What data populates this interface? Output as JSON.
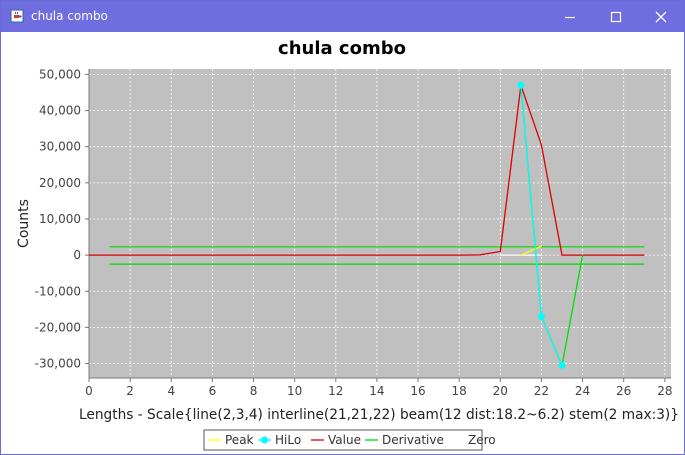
{
  "window": {
    "title": "chula combo",
    "icon": "java-cup-icon",
    "controls": [
      "minimize-icon",
      "maximize-icon",
      "close-icon"
    ]
  },
  "chart_data": {
    "type": "line",
    "title": "chula combo",
    "xlabel": "Lengths - Scale{line(2,3,4) interline(21,21,22) beam(12 dist:18.2~6.2) stem(2 max:3)}",
    "ylabel": "Counts",
    "xlim": [
      0,
      28.3
    ],
    "ylim": [
      -34000,
      51500
    ],
    "x_ticks": [
      0,
      2,
      4,
      6,
      8,
      10,
      12,
      14,
      16,
      18,
      20,
      22,
      24,
      26,
      28
    ],
    "y_ticks": [
      -30000,
      -20000,
      -10000,
      0,
      10000,
      20000,
      30000,
      40000,
      50000
    ],
    "y_tick_labels": [
      "-30,000",
      "-20,000",
      "-10,000",
      "0",
      "10,000",
      "20,000",
      "30,000",
      "40,000",
      "50,000"
    ],
    "background": "#c0c0c0",
    "grid": true,
    "legend_position": "bottom",
    "series": [
      {
        "name": "Peak",
        "color": "#ffff00",
        "markers": false,
        "x": [
          21,
          22
        ],
        "y": [
          0,
          2500
        ]
      },
      {
        "name": "HiLo",
        "color": "#00ffff",
        "markers": true,
        "x": [
          21,
          22,
          23
        ],
        "y": [
          47000,
          -17000,
          -30500
        ]
      },
      {
        "name": "Value",
        "color": "#dd0000",
        "markers": false,
        "x": [
          0,
          1,
          2,
          3,
          4,
          5,
          6,
          7,
          8,
          9,
          10,
          11,
          12,
          13,
          14,
          15,
          16,
          17,
          18,
          19,
          20,
          21,
          22,
          23,
          24,
          25,
          26,
          27
        ],
        "y": [
          0,
          0,
          0,
          0,
          0,
          0,
          0,
          0,
          0,
          0,
          0,
          0,
          0,
          0,
          0,
          0,
          0,
          0,
          0,
          50,
          1000,
          47000,
          30500,
          0,
          0,
          0,
          0,
          0
        ]
      },
      {
        "name": "Derivative",
        "color": "#00dd00",
        "markers": false,
        "x": [
          21,
          22,
          23,
          24
        ],
        "y": [
          47000,
          -17000,
          -30500,
          0
        ]
      },
      {
        "name": "Zero",
        "color": "#ffffff",
        "markers": false,
        "x": [
          20,
          22
        ],
        "y": [
          0,
          0
        ]
      }
    ],
    "threshold_lines": [
      {
        "color": "#00dd00",
        "x": [
          1,
          27
        ],
        "y": 2300
      },
      {
        "color": "#00dd00",
        "x": [
          1,
          27
        ],
        "y": -2500
      }
    ]
  }
}
